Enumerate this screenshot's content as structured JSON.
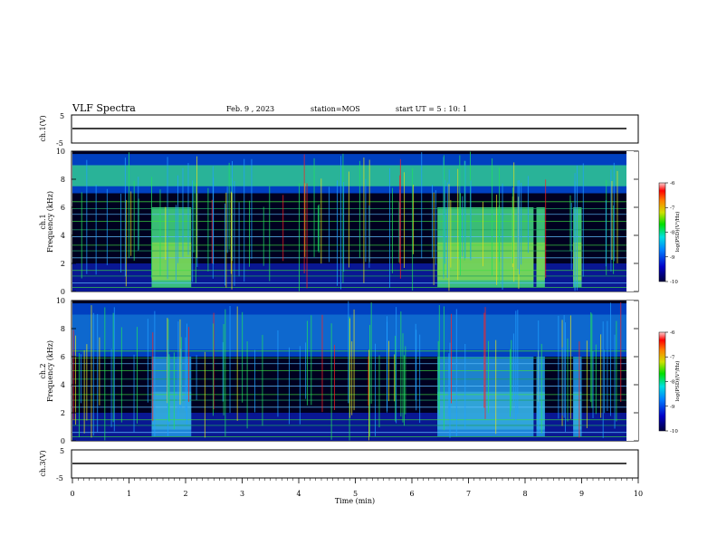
{
  "header": {
    "title": "VLF Spectra",
    "date": "Feb. 9 , 2023",
    "station": "station=MOS",
    "start": "start UT = 5 : 10: 1"
  },
  "chart_data": {
    "type": "heatmap",
    "xlabel": "Time (min)",
    "xlim": [
      0,
      10
    ],
    "xticks": [
      "0",
      "1",
      "2",
      "3",
      "4",
      "5",
      "6",
      "7",
      "8",
      "9",
      "10"
    ],
    "panels": [
      {
        "id": "ch1-waveform",
        "ylabel": "ch.1(V)",
        "ylim": [
          -5,
          5
        ],
        "yticks": [
          "5",
          "-5"
        ],
        "trace_level": 0
      },
      {
        "id": "ch1-spectrogram",
        "ylabel": "ch.1\nFrequency (kHz)",
        "ylim": [
          0,
          10
        ],
        "yticks": [
          "0",
          "2",
          "4",
          "6",
          "8",
          "10"
        ],
        "colorbar": {
          "label": "log(PSD)(V²/Hz)",
          "ticks": [
            "-6",
            "-7",
            "-8",
            "-9",
            "-10"
          ],
          "range": [
            -10,
            -6
          ]
        },
        "broadband_bursts_min": [
          [
            1.4,
            2.1
          ],
          [
            6.45,
            8.15
          ],
          [
            8.2,
            8.35
          ],
          [
            8.85,
            9.0
          ]
        ],
        "interference_band_kHz": [
          7.0,
          9.0
        ]
      },
      {
        "id": "ch2-spectrogram",
        "ylabel": "ch.2\nFrequency (kHz)",
        "ylim": [
          0,
          10
        ],
        "yticks": [
          "0",
          "2",
          "4",
          "6",
          "8",
          "10"
        ],
        "colorbar": {
          "label": "log(PSD)(V²/Hz)",
          "ticks": [
            "-6",
            "-7",
            "-8",
            "-9",
            "-10"
          ],
          "range": [
            -10,
            -6
          ]
        },
        "broadband_bursts_min": [
          [
            1.4,
            2.1
          ],
          [
            6.45,
            8.15
          ],
          [
            8.2,
            8.35
          ],
          [
            8.85,
            9.0
          ]
        ],
        "interference_band_kHz": [
          6.0,
          9.0
        ]
      },
      {
        "id": "ch3-waveform",
        "ylabel": "ch.3(V)",
        "ylim": [
          -5,
          5
        ],
        "yticks": [
          "5",
          "-5"
        ],
        "trace_level": 0
      }
    ]
  }
}
